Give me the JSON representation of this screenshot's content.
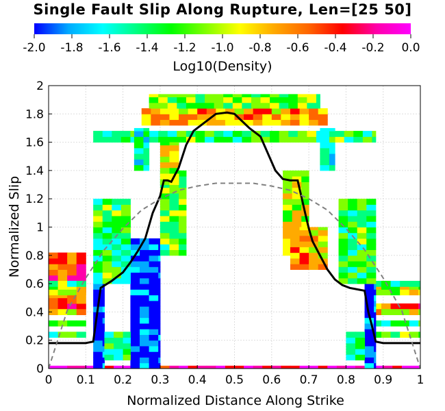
{
  "chart_data": {
    "type": "heatmap",
    "title": "Single Fault Slip Along Rupture, Len=[25 50]",
    "xlabel": "Normalized Distance Along Strike",
    "ylabel": "Normalized Slip",
    "xlim": [
      0,
      1
    ],
    "ylim": [
      0,
      2
    ],
    "x_ticks": [
      "0",
      "0.1",
      "0.2",
      "0.3",
      "0.4",
      "0.5",
      "0.6",
      "0.7",
      "0.8",
      "0.9",
      "1"
    ],
    "y_ticks": [
      "0",
      "0.2",
      "0.4",
      "0.6",
      "0.8",
      "1",
      "1.2",
      "1.4",
      "1.6",
      "1.8",
      "2"
    ],
    "grid": true,
    "colorbar": {
      "label": "Log10(Density)",
      "range": [
        -2.0,
        0.0
      ],
      "ticks": [
        "-2.0",
        "-1.8",
        "-1.6",
        "-1.4",
        "-1.2",
        "-1.0",
        "-0.8",
        "-0.6",
        "-0.4",
        "-0.2",
        "0.0"
      ],
      "colors": [
        "#0000ff",
        "#00aaff",
        "#00ffff",
        "#00ff80",
        "#00ff00",
        "#80ff00",
        "#ffff00",
        "#ffaa00",
        "#ff6600",
        "#ff0000",
        "#ff00aa",
        "#ff00ff"
      ]
    },
    "series": [
      {
        "style": "solid-black",
        "x": [
          0.0,
          0.05,
          0.1,
          0.12,
          0.14,
          0.17,
          0.2,
          0.22,
          0.24,
          0.26,
          0.28,
          0.3,
          0.31,
          0.32,
          0.33,
          0.35,
          0.37,
          0.39,
          0.41,
          0.43,
          0.45,
          0.48,
          0.5,
          0.52,
          0.54,
          0.57,
          0.59,
          0.61,
          0.63,
          0.65,
          0.67,
          0.69,
          0.7,
          0.71,
          0.73,
          0.75,
          0.77,
          0.79,
          0.81,
          0.83,
          0.85,
          0.86,
          0.87,
          0.88,
          0.9,
          0.95,
          1.0
        ],
        "y": [
          0.18,
          0.18,
          0.18,
          0.19,
          0.57,
          0.62,
          0.68,
          0.75,
          0.83,
          0.92,
          1.1,
          1.22,
          1.33,
          1.33,
          1.32,
          1.42,
          1.58,
          1.68,
          1.72,
          1.76,
          1.8,
          1.81,
          1.8,
          1.75,
          1.7,
          1.64,
          1.52,
          1.4,
          1.34,
          1.33,
          1.33,
          1.1,
          0.99,
          0.9,
          0.8,
          0.7,
          0.63,
          0.59,
          0.57,
          0.56,
          0.55,
          0.4,
          0.3,
          0.19,
          0.18,
          0.18,
          0.18
        ]
      },
      {
        "style": "dashed-gray",
        "x": [
          0.0,
          0.05,
          0.1,
          0.15,
          0.2,
          0.25,
          0.3,
          0.35,
          0.4,
          0.45,
          0.5,
          0.55,
          0.6,
          0.65,
          0.7,
          0.75,
          0.8,
          0.85,
          0.9,
          0.95,
          1.0
        ],
        "y": [
          0.0,
          0.41,
          0.64,
          0.84,
          0.99,
          1.12,
          1.2,
          1.26,
          1.29,
          1.31,
          1.31,
          1.31,
          1.29,
          1.26,
          1.2,
          1.12,
          0.99,
          0.84,
          0.64,
          0.41,
          0.0
        ]
      }
    ],
    "heatmap_cells": [
      [
        0.0,
        0.1,
        0.0,
        0.02,
        0.0
      ],
      [
        0.1,
        0.3,
        0.0,
        0.02,
        0.0
      ],
      [
        0.7,
        1.0,
        0.0,
        0.02,
        0.0
      ],
      [
        0.3,
        0.7,
        0.0,
        0.02,
        -0.2
      ],
      [
        0.0,
        0.1,
        0.42,
        0.4,
        -0.5
      ],
      [
        0.0,
        0.1,
        0.52,
        0.06,
        -0.9
      ],
      [
        0.0,
        0.1,
        0.58,
        0.04,
        -1.3
      ],
      [
        0.0,
        0.1,
        0.38,
        0.04,
        -0.8
      ],
      [
        0.0,
        0.1,
        0.3,
        0.04,
        -1.3
      ],
      [
        0.0,
        0.1,
        0.22,
        0.04,
        -1.3
      ],
      [
        0.87,
        1.0,
        0.42,
        0.04,
        -0.5
      ],
      [
        0.87,
        1.0,
        0.52,
        0.06,
        -0.9
      ],
      [
        0.87,
        1.0,
        0.58,
        0.04,
        -1.3
      ],
      [
        0.87,
        1.0,
        0.38,
        0.04,
        -0.8
      ],
      [
        0.87,
        1.0,
        0.3,
        0.04,
        -1.3
      ],
      [
        0.87,
        1.0,
        0.22,
        0.04,
        -1.3
      ],
      [
        0.22,
        0.3,
        0.0,
        0.92,
        -2.0
      ],
      [
        0.12,
        0.15,
        0.0,
        0.6,
        -2.0
      ],
      [
        0.85,
        0.88,
        0.0,
        0.6,
        -2.0
      ],
      [
        0.15,
        0.22,
        0.06,
        0.2,
        -1.4
      ],
      [
        0.8,
        0.85,
        0.06,
        0.2,
        -1.4
      ],
      [
        0.12,
        0.22,
        0.6,
        0.6,
        -1.3
      ],
      [
        0.78,
        0.88,
        0.6,
        0.6,
        -1.3
      ],
      [
        0.3,
        0.37,
        0.8,
        0.6,
        -1.2
      ],
      [
        0.63,
        0.7,
        0.8,
        0.6,
        -1.0
      ],
      [
        0.12,
        0.88,
        1.6,
        0.08,
        -1.3
      ],
      [
        0.25,
        0.75,
        1.72,
        0.12,
        -0.7
      ],
      [
        0.27,
        0.73,
        1.84,
        0.1,
        -1.2
      ],
      [
        0.23,
        0.27,
        1.4,
        0.3,
        -1.5
      ],
      [
        0.73,
        0.77,
        1.4,
        0.3,
        -1.5
      ],
      [
        0.3,
        0.35,
        1.3,
        0.3,
        -1.0
      ],
      [
        0.65,
        0.7,
        0.7,
        0.3,
        -0.6
      ],
      [
        0.7,
        0.75,
        0.7,
        0.3,
        -0.8
      ]
    ]
  }
}
